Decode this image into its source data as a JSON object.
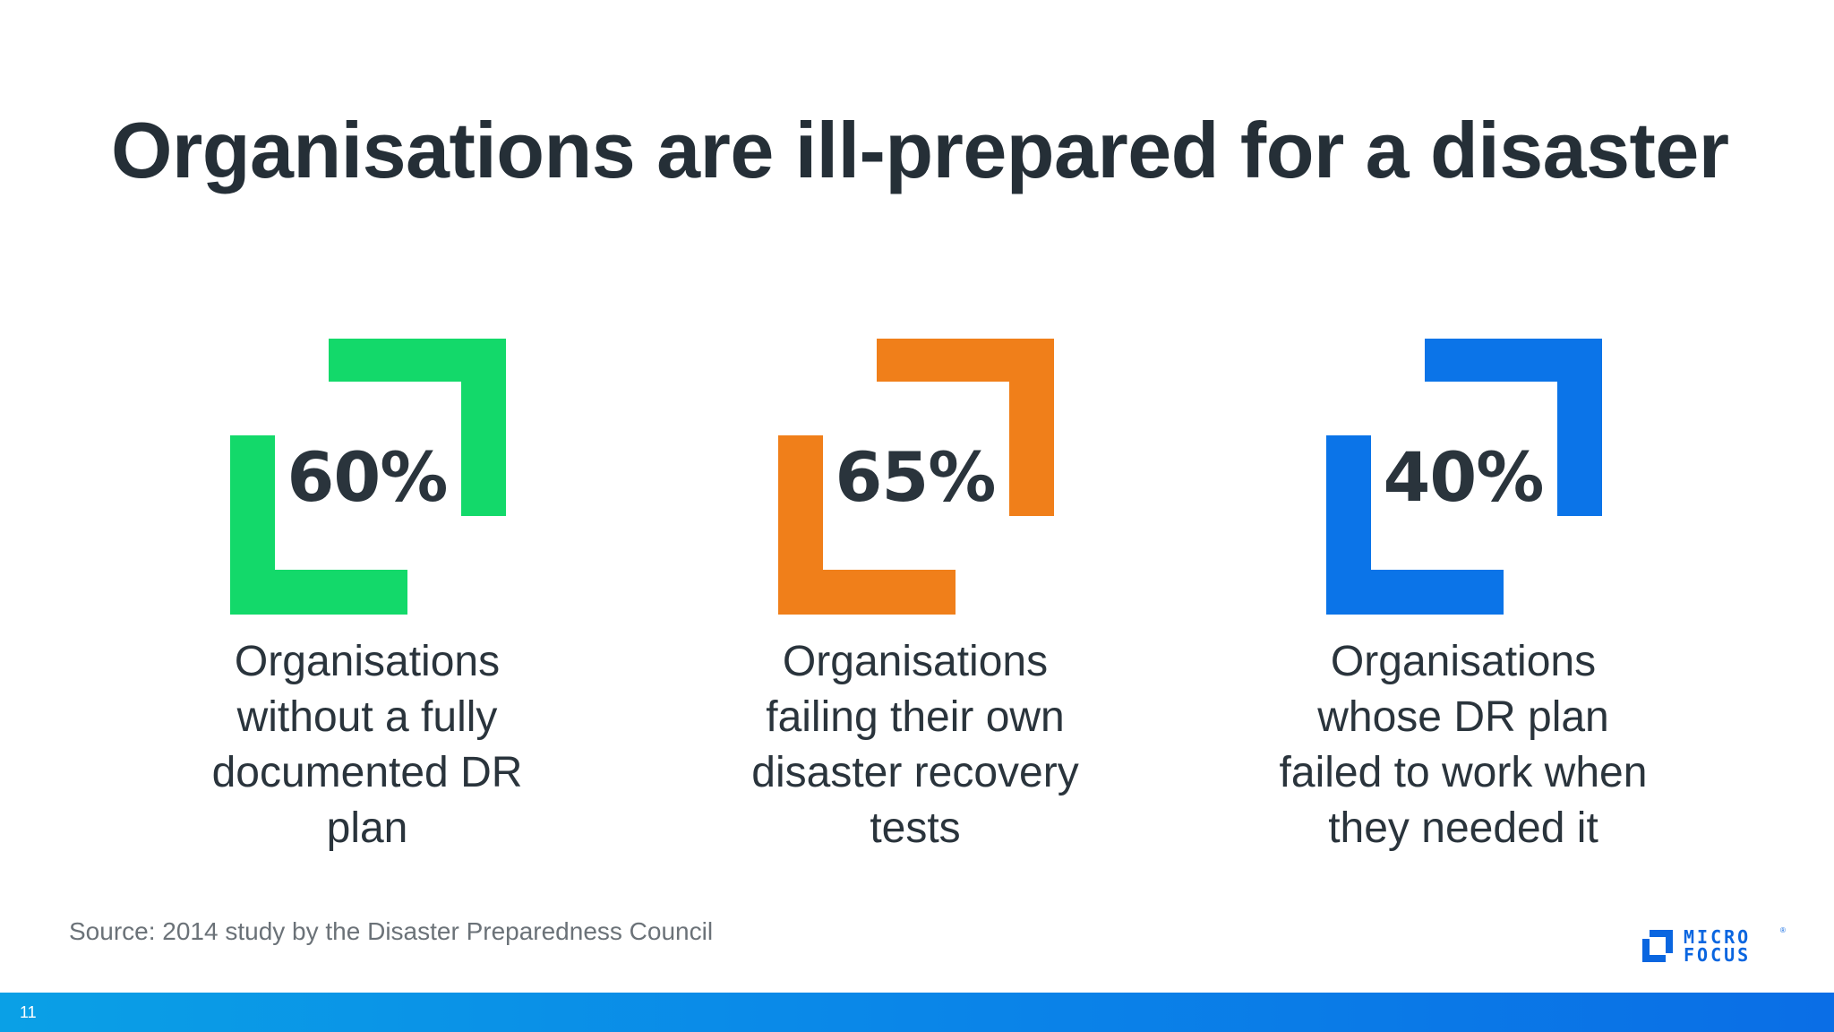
{
  "slide": {
    "title": "Organisations are ill-prepared for a disaster",
    "stats": [
      {
        "value": "60%",
        "color": "#13d96a",
        "lines": [
          "Organisations",
          "without a fully",
          "documented DR",
          "plan"
        ]
      },
      {
        "value": "65%",
        "color": "#f07f1a",
        "lines": [
          "Organisations",
          "failing their own",
          "disaster recovery",
          "tests"
        ]
      },
      {
        "value": "40%",
        "color": "#0b74e8",
        "lines": [
          "Organisations",
          "whose DR plan",
          "failed to work when",
          "they needed it"
        ]
      }
    ],
    "source": "Source: 2014 study by the Disaster Preparedness Council"
  },
  "logo": {
    "line1": "MICRO",
    "line2": "FOCUS",
    "registered": "®",
    "color": "#0a66e0",
    "icon": "micro-focus-logo-icon"
  },
  "footer": {
    "page_number": "11"
  }
}
